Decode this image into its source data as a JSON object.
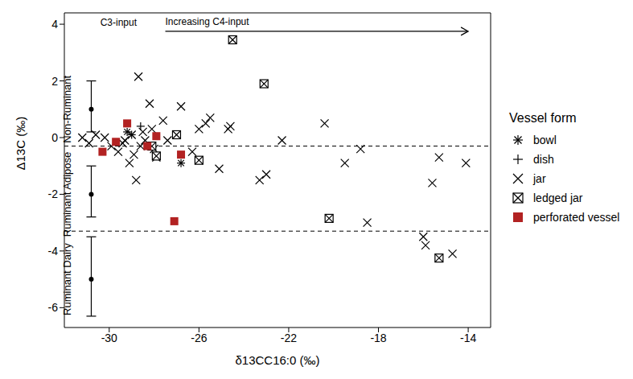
{
  "chart_data": {
    "type": "scatter",
    "x_label": "δ13CC16:0 (‰)",
    "y_label": "Δ13C (‰)",
    "xlim": [
      -32,
      -13
    ],
    "xticks": [
      -30,
      -26,
      -22,
      -18,
      -14
    ],
    "ylim": [
      -6.7,
      4.4
    ],
    "yticks": [
      -6,
      -4,
      -2,
      0,
      2,
      4
    ],
    "legend": "right",
    "legend_title": "Vessel form",
    "reference_lines": {
      "values": [
        -0.3,
        -3.3
      ],
      "line_style": "dashed",
      "color": "#000000"
    },
    "reference_ranges": [
      {
        "label": "Non-Ruminant",
        "x": -30.8,
        "value": 1,
        "low": 0.2,
        "high": 2
      },
      {
        "label": "Ruminant Adipose",
        "x": -30.8,
        "value": -2,
        "low": -2.8,
        "high": -1
      },
      {
        "label": "Ruminant Dairy",
        "x": -30.8,
        "value": -5,
        "low": -6.3,
        "high": -3.5
      }
    ],
    "annotations": [
      {
        "text": "C3-input",
        "x": -30.4,
        "y": 4.05
      },
      {
        "text": "Increasing C4-input",
        "x": -27.5,
        "y": 4.1
      }
    ],
    "arrow": {
      "x1": -27.5,
      "x2": -14,
      "y": 3.75
    },
    "series": [
      {
        "name": "bowl",
        "color": "#000000",
        "marker": "asterisk",
        "x": [
          -26.8,
          -29.2
        ],
        "values": [
          -0.9,
          0.2
        ]
      },
      {
        "name": "dish",
        "color": "#000000",
        "marker": "plus",
        "x": [
          -28.6,
          -29.0
        ],
        "values": [
          0.4,
          0.1
        ]
      },
      {
        "name": "jar",
        "color": "#000000",
        "marker": "x",
        "x": [
          -31.2,
          -30.9,
          -30.6,
          -30.2,
          -29.9,
          -29.6,
          -29.4,
          -29.1,
          -29.0,
          -28.9,
          -28.8,
          -28.7,
          -28.6,
          -28.4,
          -28.2,
          -28.1,
          -28.0,
          -27.9,
          -27.6,
          -27.4,
          -26.8,
          -26.3,
          -26.0,
          -25.7,
          -25.5,
          -25.1,
          -24.7,
          -24.6,
          -23.3,
          -23.0,
          -22.3,
          -20.4,
          -19.5,
          -18.8,
          -18.5,
          -16.0,
          -15.9,
          -15.6,
          -15.3,
          -14.7,
          -14.1,
          -29.3,
          -28.5
        ],
        "values": [
          0.0,
          -0.2,
          0.1,
          0.0,
          -0.3,
          -0.5,
          -0.2,
          -0.9,
          0.1,
          -0.6,
          -1.5,
          2.15,
          -0.3,
          -0.1,
          1.2,
          0.3,
          -0.4,
          -0.7,
          0.6,
          -0.1,
          1.1,
          -0.5,
          0.3,
          0.5,
          0.7,
          -1.1,
          0.3,
          0.4,
          -1.5,
          -1.3,
          -0.1,
          0.5,
          -0.9,
          -0.4,
          -3.0,
          -3.5,
          -3.8,
          -1.6,
          -0.7,
          -4.1,
          -0.9,
          -0.1,
          0.2
        ]
      },
      {
        "name": "ledged jar",
        "color": "#000000",
        "marker": "boxed_x",
        "x": [
          -24.5,
          -23.1,
          -27.0,
          -26.0,
          -28.1,
          -27.9,
          -20.2,
          -15.3
        ],
        "values": [
          3.45,
          1.9,
          0.1,
          -0.8,
          -0.3,
          -0.65,
          -2.85,
          -4.25
        ]
      },
      {
        "name": "perforated vessel",
        "color": "#b22222",
        "marker": "square",
        "x": [
          -30.3,
          -29.7,
          -29.2,
          -28.3,
          -27.9,
          -26.8,
          -27.1
        ],
        "values": [
          -0.5,
          -0.15,
          0.5,
          -0.3,
          0.05,
          -0.6,
          -2.95
        ]
      }
    ]
  }
}
